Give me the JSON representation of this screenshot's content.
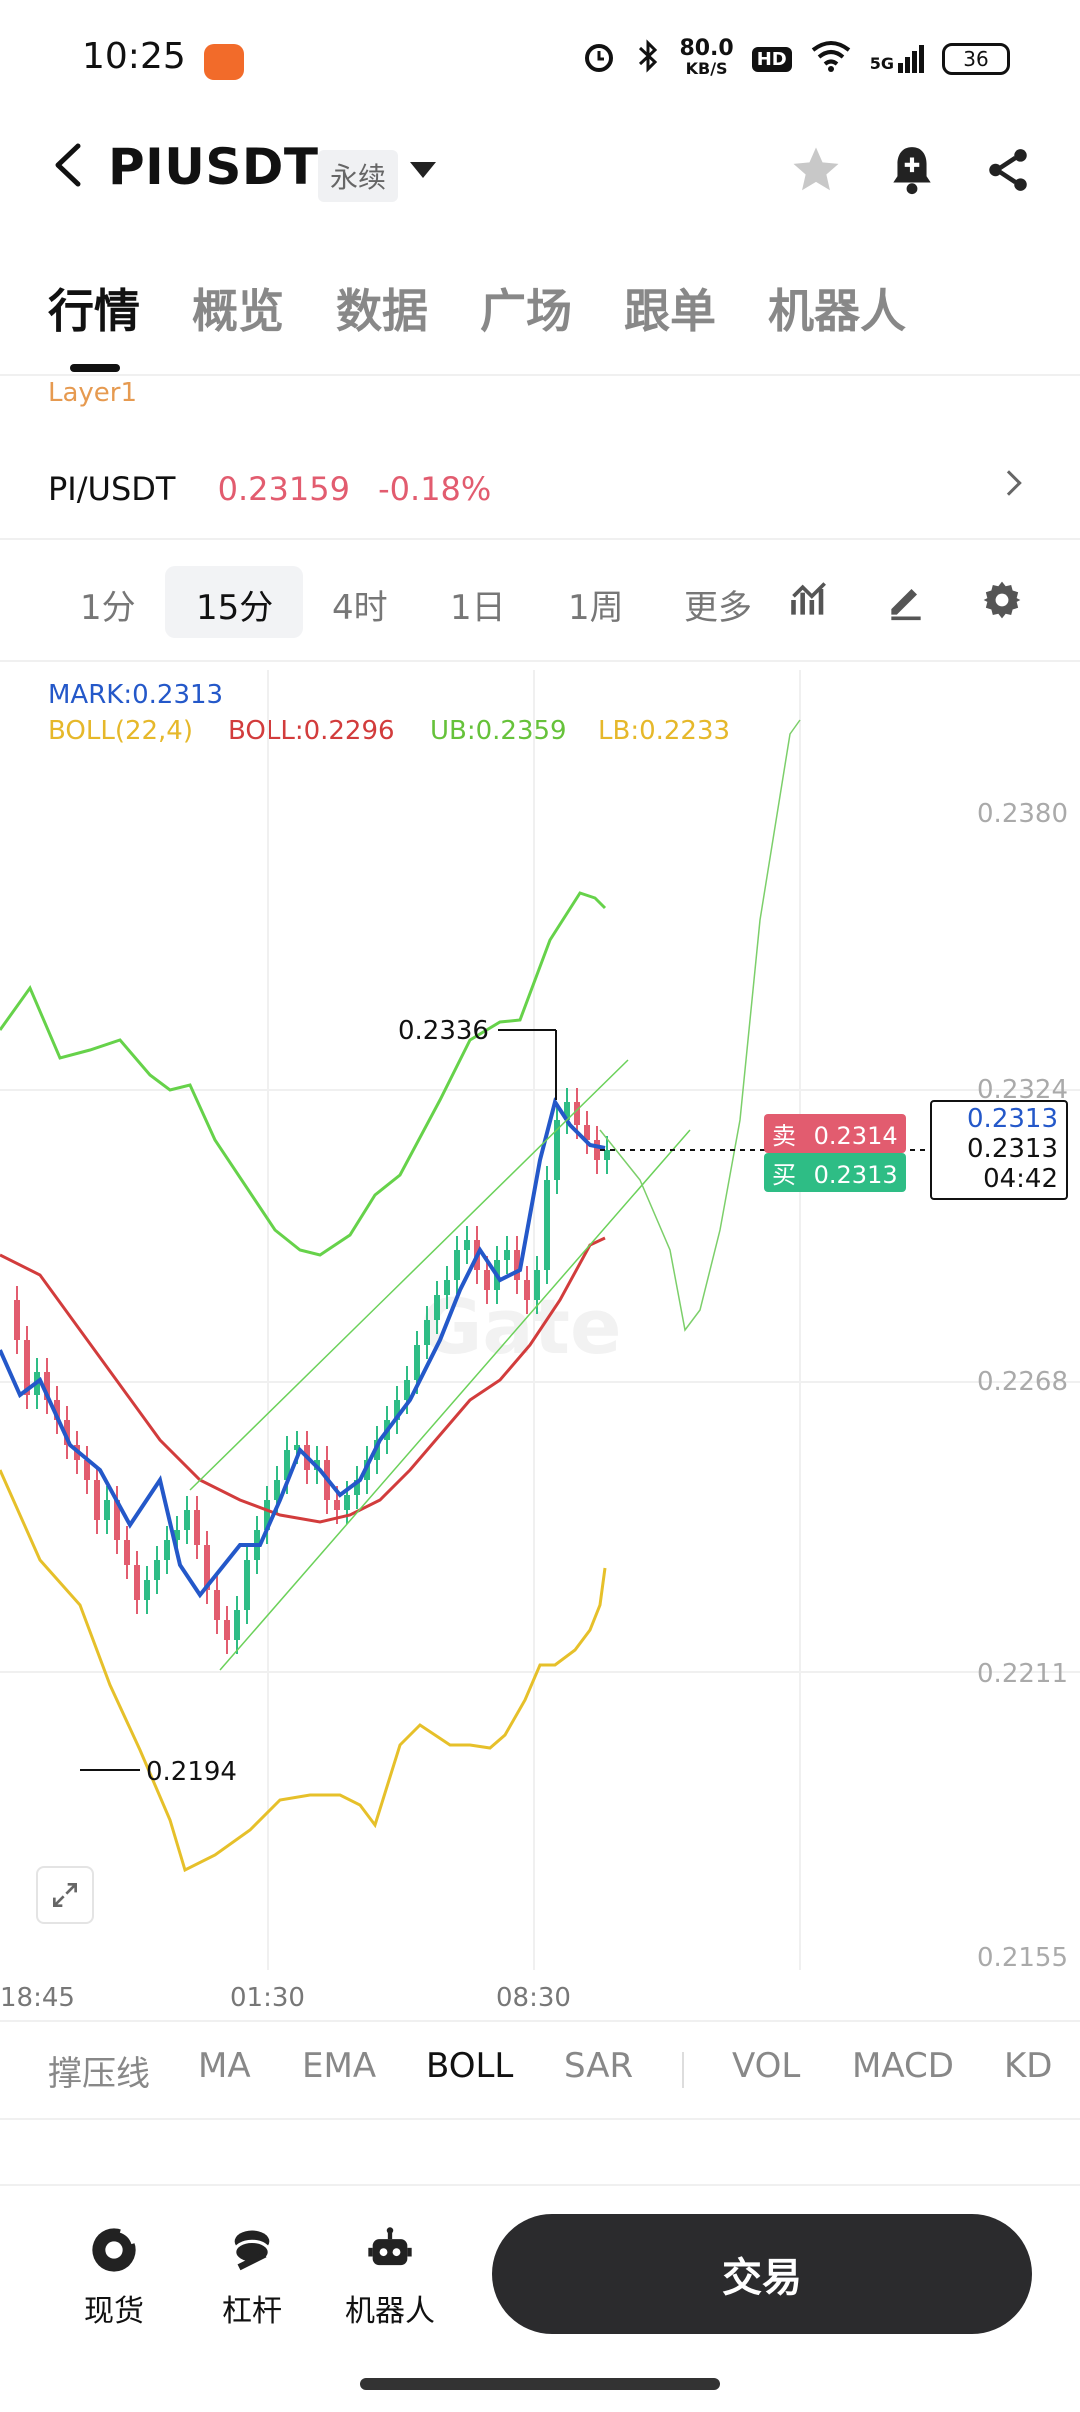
{
  "status_bar": {
    "time": "10:25",
    "net_speed": "80.0",
    "net_speed_unit": "KB/S",
    "hd": "HD",
    "network": "5G",
    "battery": "36"
  },
  "header": {
    "pair": "PIUSDT",
    "contract_type": "永续"
  },
  "tabs": [
    {
      "label": "行情",
      "active": true
    },
    {
      "label": "概览"
    },
    {
      "label": "数据"
    },
    {
      "label": "广场"
    },
    {
      "label": "跟单"
    },
    {
      "label": "机器人"
    }
  ],
  "category": "Layer1",
  "ticker": {
    "pair": "PI/USDT",
    "price": "0.23159",
    "change": "-0.18%"
  },
  "timeframes": [
    "1分",
    "15分",
    "4时",
    "1日",
    "1周",
    "更多"
  ],
  "selected_timeframe": "15分",
  "indicators_legend": {
    "mark": "MARK:0.2313",
    "boll_params": "BOLL(22,4)",
    "boll": "BOLL:0.2296",
    "ub": "UB:0.2359",
    "lb": "LB:0.2233"
  },
  "chart": {
    "price_axis": [
      "0.2380",
      "0.2324",
      "0.2268",
      "0.2211",
      "0.2155"
    ],
    "time_axis": [
      "18:45",
      "01:30",
      "08:30"
    ],
    "high_label": "0.2336",
    "low_label": "0.2194",
    "sell_label": "卖",
    "sell_price": "0.2314",
    "buy_label": "买",
    "buy_price": "0.2313",
    "box_mark": "0.2313",
    "box_last": "0.2313",
    "box_countdown": "04:42",
    "watermark": "Gate",
    "colors": {
      "up": "#2ebd85",
      "down": "#e25c6f",
      "ub": "#66d24a",
      "mid": "#d23c3c",
      "lb": "#e6c02a",
      "mark": "#2458c9"
    }
  },
  "indicator_bar": [
    "撑压线",
    "MA",
    "EMA",
    "BOLL",
    "SAR",
    "VOL",
    "MACD",
    "KD"
  ],
  "selected_indicator": "BOLL",
  "bottom_nav": [
    {
      "label": "现货",
      "icon": "spot-icon"
    },
    {
      "label": "杠杆",
      "icon": "margin-icon"
    },
    {
      "label": "机器人",
      "icon": "robot-icon"
    }
  ],
  "trade_button": "交易"
}
